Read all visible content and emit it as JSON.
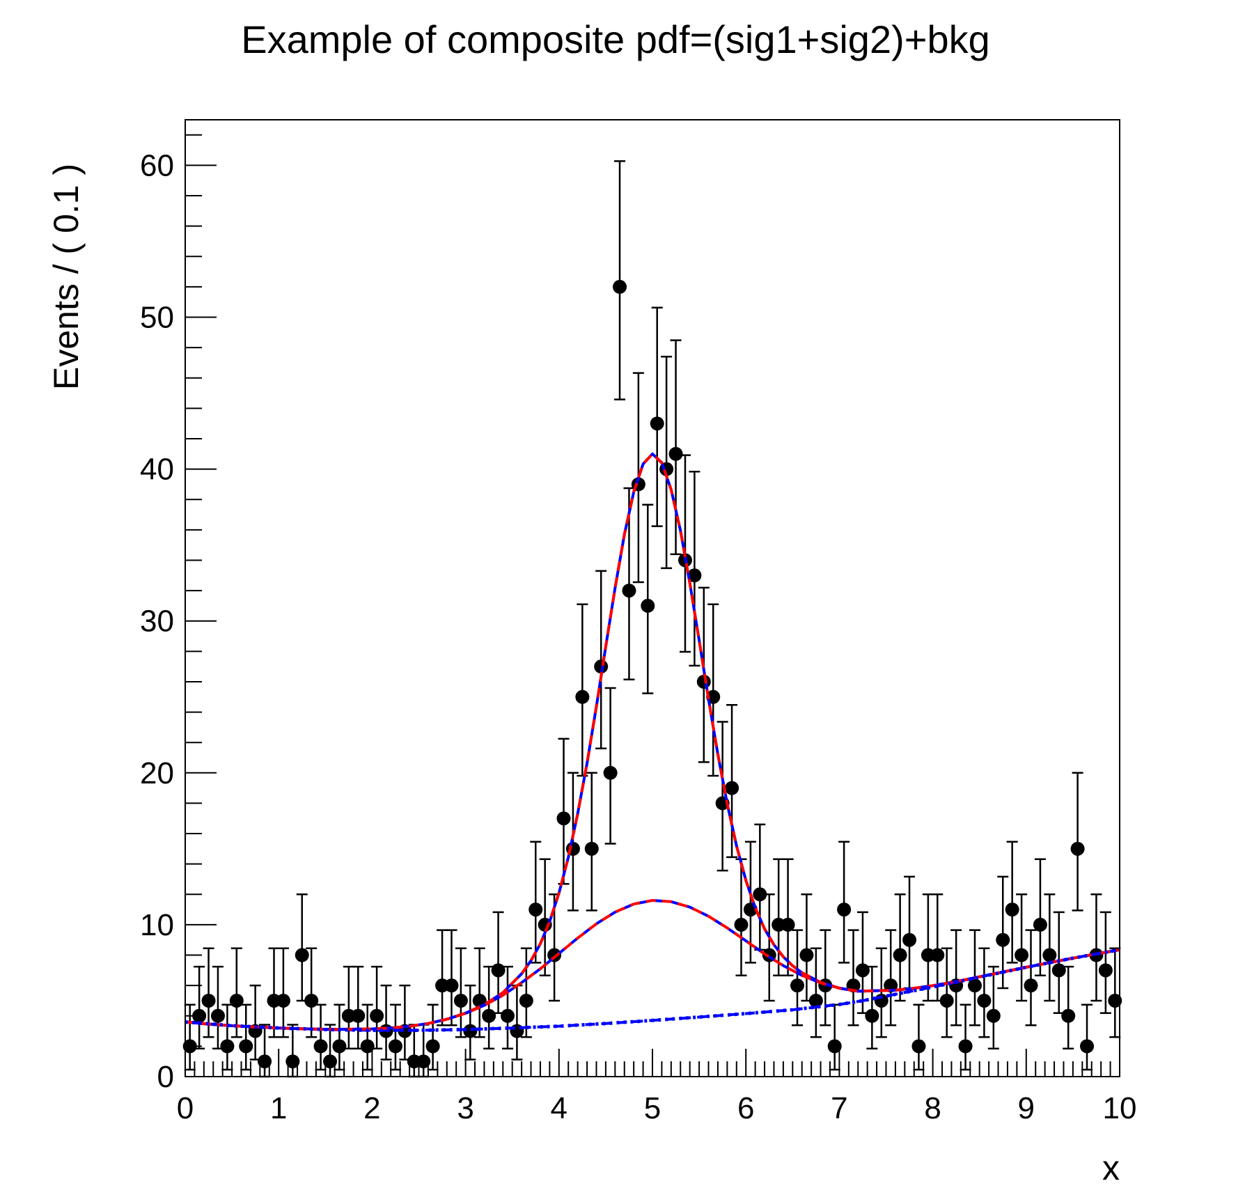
{
  "title": "Example of composite pdf=(sig1+sig2)+bkg",
  "axes": {
    "x": {
      "label": "x",
      "min": 0,
      "max": 10,
      "major_ticks": [
        0,
        1,
        2,
        3,
        4,
        5,
        6,
        7,
        8,
        9,
        10
      ],
      "minor_step": 0.1
    },
    "y": {
      "label": "Events / ( 0.1 )",
      "min": 0,
      "max": 63,
      "major_ticks": [
        0,
        10,
        20,
        30,
        40,
        50,
        60
      ],
      "minor_step": 2
    }
  },
  "colors": {
    "background": "#ffffff",
    "frame": "#000000",
    "data_points": "#000000",
    "model_total": "#0000ff",
    "model_total_overlay": "#ff0000",
    "component_bkg_sig2": "#ff0000",
    "component_bkg": "#0000ff"
  },
  "chart_data": {
    "type": "scatter",
    "title": "Example of composite pdf=(sig1+sig2)+bkg",
    "xlabel": "x",
    "ylabel": "Events / ( 0.1 )",
    "xlim": [
      0,
      10
    ],
    "ylim": [
      0,
      63
    ],
    "grid": false,
    "legend": "none",
    "bin_width": 0.1,
    "x_start": 0.05,
    "x_step": 0.1,
    "errors": "poisson-68pct-asymmetric",
    "marker": {
      "shape": "circle",
      "radius_px": 10,
      "color": "#000000"
    },
    "values": [
      2,
      4,
      5,
      4,
      2,
      5,
      2,
      3,
      1,
      5,
      5,
      1,
      8,
      5,
      2,
      1,
      2,
      4,
      4,
      2,
      4,
      3,
      2,
      3,
      1,
      1,
      2,
      6,
      6,
      5,
      3,
      5,
      4,
      7,
      4,
      3,
      5,
      11,
      10,
      8,
      17,
      15,
      25,
      15,
      27,
      20,
      52,
      32,
      39,
      31,
      43,
      40,
      41,
      34,
      33,
      26,
      25,
      18,
      19,
      10,
      11,
      12,
      8,
      10,
      10,
      6,
      8,
      5,
      6,
      2,
      11,
      6,
      7,
      4,
      5,
      6,
      8,
      9,
      2,
      8,
      8,
      5,
      6,
      2,
      6,
      5,
      4,
      9,
      11,
      8,
      6,
      10,
      8,
      7,
      4,
      15,
      2,
      8,
      7,
      5
    ],
    "curves": [
      {
        "name": "model total (sig1+sig2)+bkg",
        "style": "solid blue with red dashed overlay",
        "color": "#0000ff",
        "overlay_color": "#ff0000",
        "peak": {
          "x": 5.0,
          "y": 41.0
        },
        "points": [
          [
            0,
            3.6
          ],
          [
            0.25,
            3.45
          ],
          [
            0.5,
            3.35
          ],
          [
            0.75,
            3.27
          ],
          [
            1,
            3.2
          ],
          [
            1.25,
            3.15
          ],
          [
            1.5,
            3.12
          ],
          [
            1.75,
            3.11
          ],
          [
            2,
            3.14
          ],
          [
            2.2,
            3.2
          ],
          [
            2.4,
            3.31
          ],
          [
            2.6,
            3.5
          ],
          [
            2.8,
            3.78
          ],
          [
            3,
            4.18
          ],
          [
            3.2,
            4.73
          ],
          [
            3.4,
            5.53
          ],
          [
            3.6,
            6.77
          ],
          [
            3.7,
            7.63
          ],
          [
            3.8,
            8.75
          ],
          [
            3.9,
            10.21
          ],
          [
            4,
            12.09
          ],
          [
            4.1,
            14.44
          ],
          [
            4.2,
            17.3
          ],
          [
            4.3,
            20.64
          ],
          [
            4.4,
            24.37
          ],
          [
            4.5,
            28.3
          ],
          [
            4.6,
            32.16
          ],
          [
            4.7,
            35.69
          ],
          [
            4.8,
            38.5
          ],
          [
            4.9,
            40.34
          ],
          [
            5,
            41.0
          ],
          [
            5.1,
            40.42
          ],
          [
            5.2,
            38.66
          ],
          [
            5.3,
            35.94
          ],
          [
            5.4,
            32.49
          ],
          [
            5.5,
            28.72
          ],
          [
            5.6,
            24.87
          ],
          [
            5.7,
            21.23
          ],
          [
            5.8,
            17.97
          ],
          [
            5.9,
            15.19
          ],
          [
            6,
            12.92
          ],
          [
            6.1,
            11.12
          ],
          [
            6.2,
            9.73
          ],
          [
            6.3,
            8.68
          ],
          [
            6.4,
            7.89
          ],
          [
            6.5,
            7.3
          ],
          [
            6.6,
            6.84
          ],
          [
            6.8,
            6.21
          ],
          [
            7,
            5.83
          ],
          [
            7.2,
            5.62
          ],
          [
            7.4,
            5.66
          ],
          [
            7.6,
            5.69
          ],
          [
            7.8,
            5.82
          ],
          [
            8,
            5.99
          ],
          [
            8.25,
            6.26
          ],
          [
            8.5,
            6.57
          ],
          [
            8.75,
            6.89
          ],
          [
            9,
            7.2
          ],
          [
            9.25,
            7.5
          ],
          [
            9.5,
            7.8
          ],
          [
            9.75,
            8.08
          ],
          [
            10,
            8.35
          ]
        ]
      },
      {
        "name": "bkg+sig2 component",
        "style": "red dashed over blue dashed",
        "color": "#ff0000",
        "under_color": "#0000ff",
        "peak": {
          "x": 5.0,
          "y": 11.6
        },
        "points": [
          [
            0,
            3.6
          ],
          [
            0.5,
            3.35
          ],
          [
            1,
            3.2
          ],
          [
            1.5,
            3.11
          ],
          [
            2,
            3.14
          ],
          [
            2.2,
            3.2
          ],
          [
            2.4,
            3.31
          ],
          [
            2.6,
            3.5
          ],
          [
            2.8,
            3.78
          ],
          [
            3,
            4.17
          ],
          [
            3.2,
            4.69
          ],
          [
            3.4,
            5.36
          ],
          [
            3.6,
            6.19
          ],
          [
            3.8,
            7.1
          ],
          [
            4,
            8.11
          ],
          [
            4.2,
            9.12
          ],
          [
            4.4,
            10.06
          ],
          [
            4.6,
            10.83
          ],
          [
            4.8,
            11.36
          ],
          [
            5,
            11.6
          ],
          [
            5.2,
            11.52
          ],
          [
            5.4,
            11.16
          ],
          [
            5.6,
            10.56
          ],
          [
            5.8,
            9.79
          ],
          [
            6,
            8.94
          ],
          [
            6.2,
            8.08
          ],
          [
            6.4,
            7.31
          ],
          [
            6.6,
            6.66
          ],
          [
            6.8,
            6.17
          ],
          [
            7,
            5.82
          ],
          [
            7.2,
            5.62
          ],
          [
            7.4,
            5.66
          ],
          [
            7.6,
            5.69
          ],
          [
            7.8,
            5.82
          ],
          [
            8,
            5.99
          ],
          [
            8.25,
            6.26
          ],
          [
            8.5,
            6.57
          ],
          [
            8.75,
            6.89
          ],
          [
            9,
            7.2
          ],
          [
            9.25,
            7.5
          ],
          [
            9.5,
            7.8
          ],
          [
            9.75,
            8.08
          ],
          [
            10,
            8.35
          ]
        ]
      },
      {
        "name": "bkg component",
        "style": "blue dash-dot",
        "color": "#0000ff",
        "points": [
          [
            0,
            3.6
          ],
          [
            0.5,
            3.35
          ],
          [
            1,
            3.2
          ],
          [
            1.5,
            3.1
          ],
          [
            2,
            3.05
          ],
          [
            2.5,
            3.05
          ],
          [
            3,
            3.1
          ],
          [
            3.5,
            3.2
          ],
          [
            4,
            3.32
          ],
          [
            4.5,
            3.5
          ],
          [
            5,
            3.7
          ],
          [
            5.5,
            3.92
          ],
          [
            6,
            4.15
          ],
          [
            6.5,
            4.4
          ],
          [
            7,
            4.75
          ],
          [
            7.25,
            5.0
          ],
          [
            7.5,
            5.3
          ],
          [
            7.75,
            5.6
          ],
          [
            8,
            5.9
          ],
          [
            8.25,
            6.22
          ],
          [
            8.5,
            6.55
          ],
          [
            8.75,
            6.88
          ],
          [
            9,
            7.2
          ],
          [
            9.25,
            7.5
          ],
          [
            9.5,
            7.8
          ],
          [
            9.75,
            8.08
          ],
          [
            10,
            8.35
          ]
        ]
      }
    ]
  }
}
